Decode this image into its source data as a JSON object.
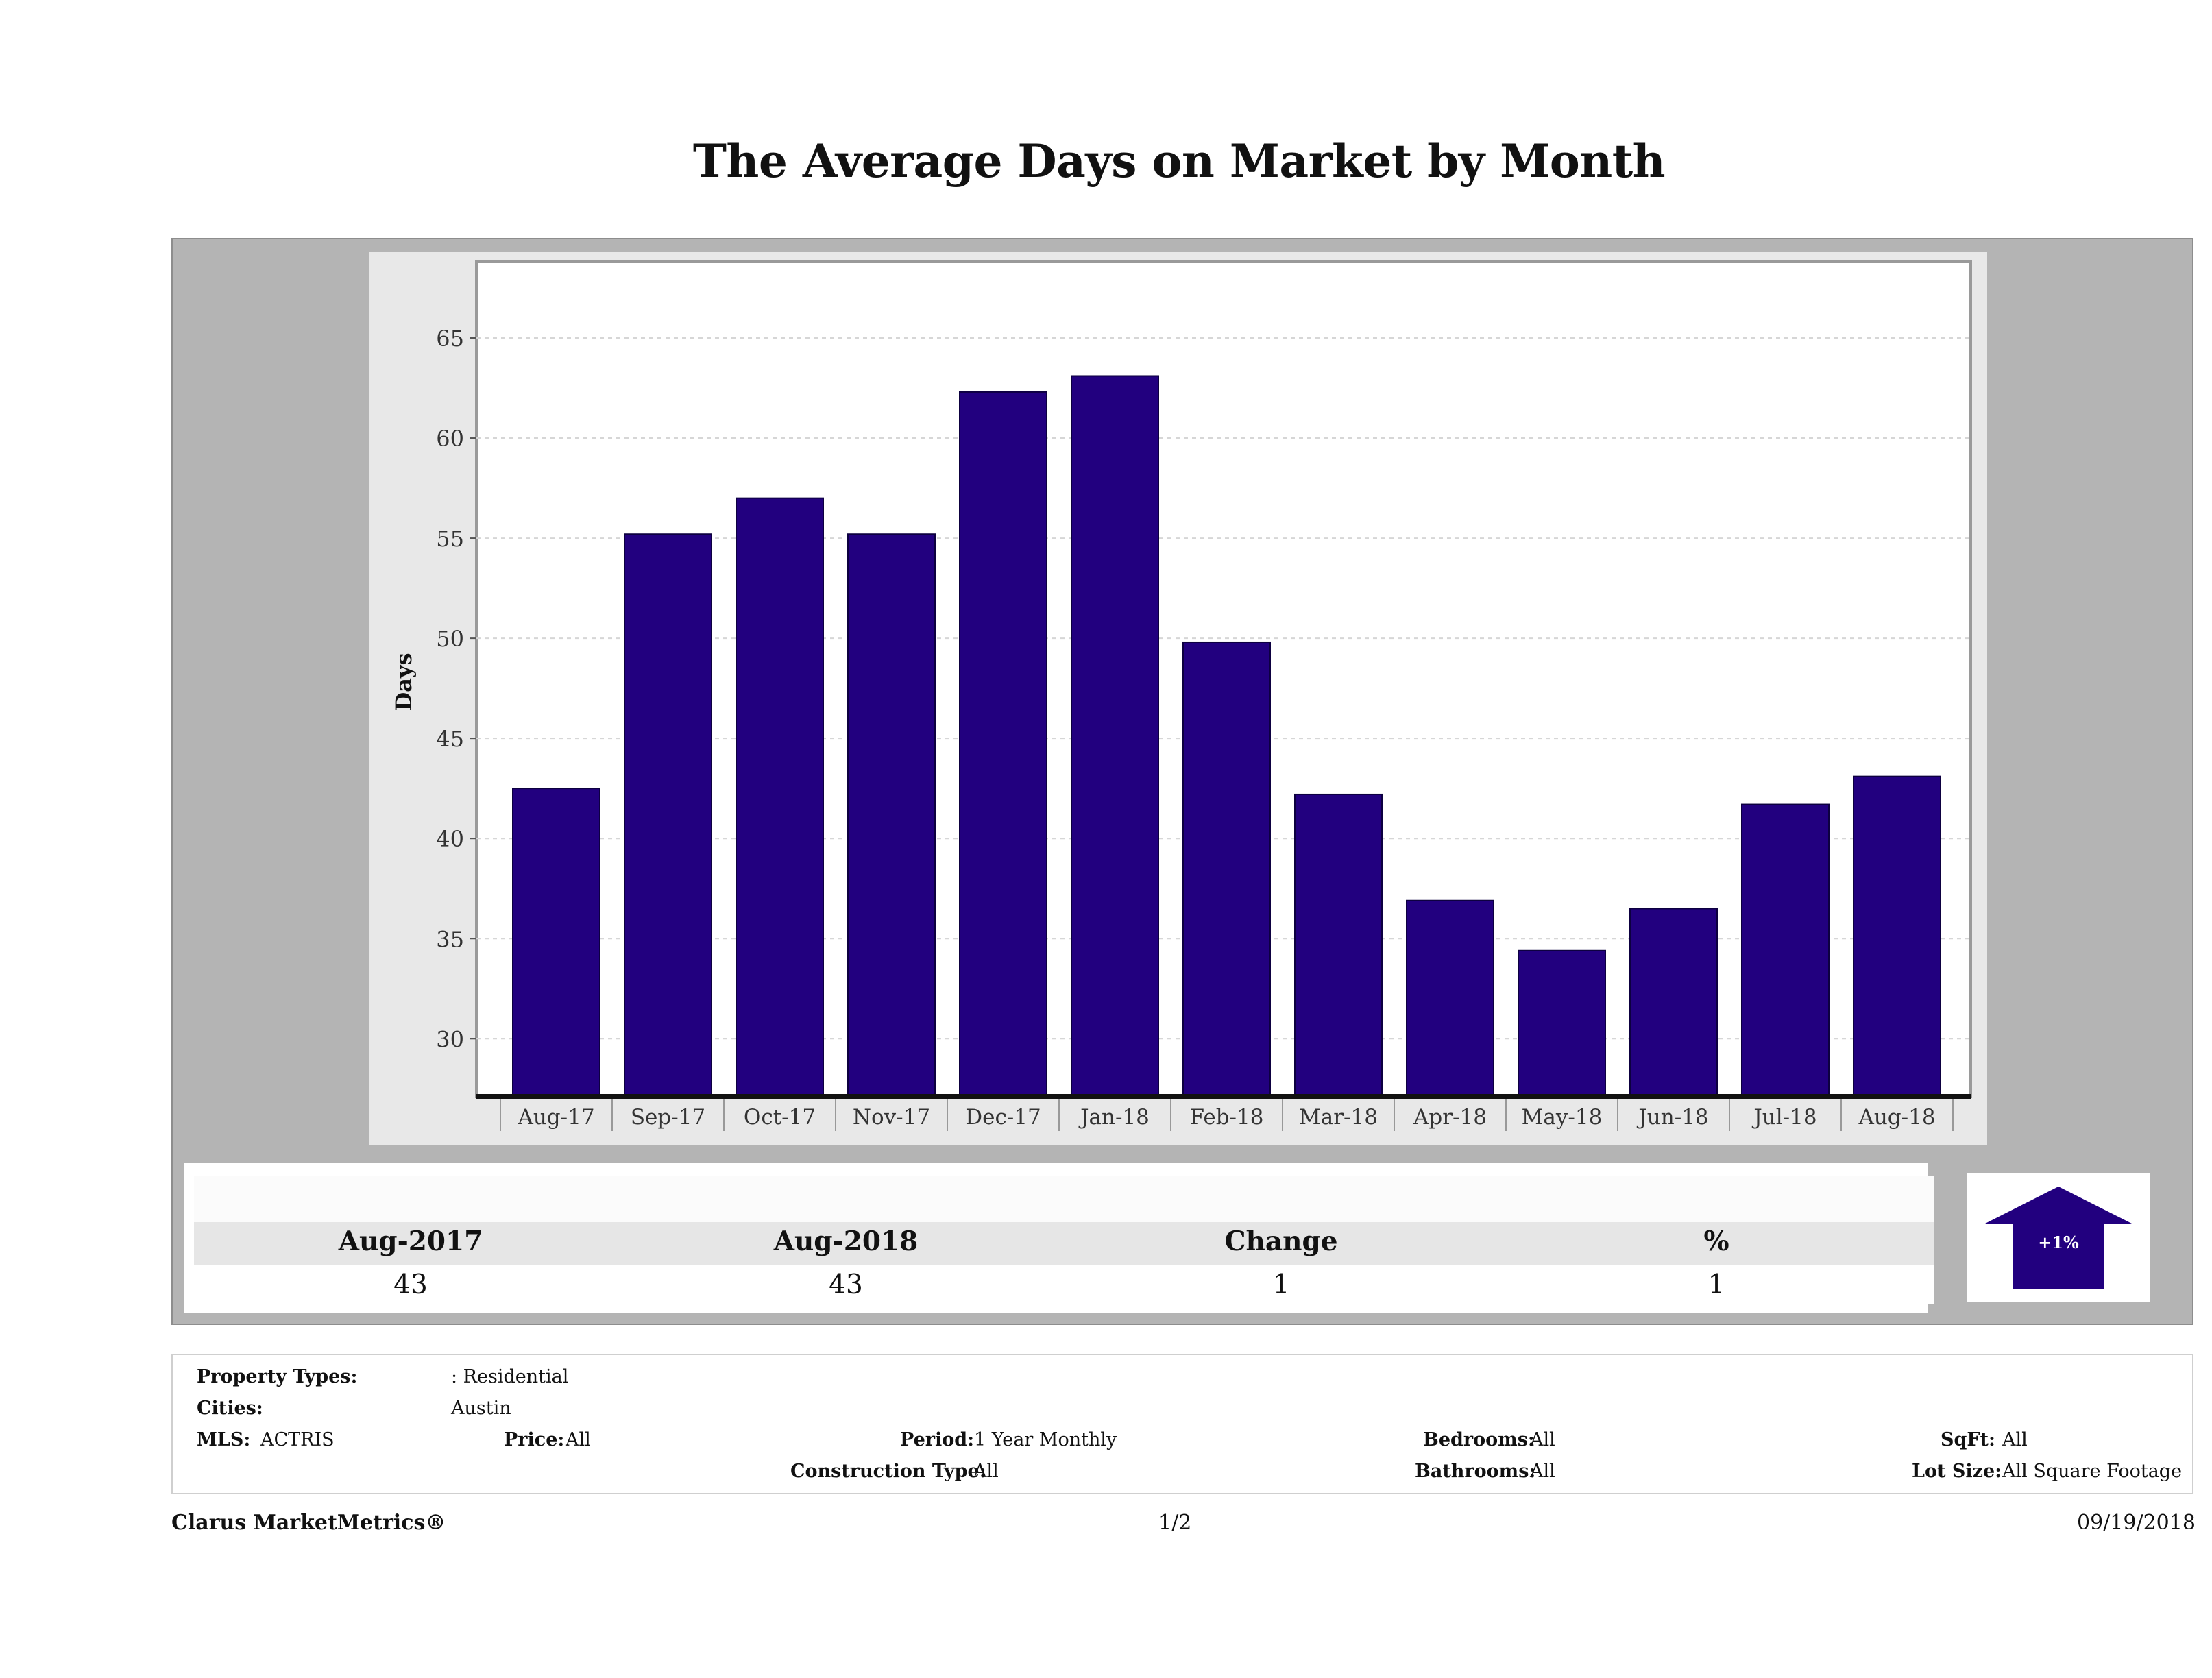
{
  "title": "The Average Days on Market by Month",
  "chart_data": {
    "type": "bar",
    "categories": [
      "Aug-17",
      "Sep-17",
      "Oct-17",
      "Nov-17",
      "Dec-17",
      "Jan-18",
      "Feb-18",
      "Mar-18",
      "Apr-18",
      "May-18",
      "Jun-18",
      "Jul-18",
      "Aug-18"
    ],
    "values": [
      42.5,
      55.2,
      57.0,
      55.2,
      62.3,
      63.1,
      49.8,
      42.2,
      36.9,
      34.4,
      36.5,
      41.7,
      43.1
    ],
    "ylabel": "Days",
    "xlabel": "",
    "yticks": [
      30,
      35,
      40,
      45,
      50,
      55,
      60,
      65
    ],
    "ylim": [
      27.1,
      68.8
    ],
    "grid": true,
    "bar_color": "#22007f"
  },
  "stats": {
    "headers": [
      "Aug-2017",
      "Aug-2018",
      "Change",
      "%"
    ],
    "values": [
      "43",
      "43",
      "1",
      "1"
    ],
    "badge": "+1%",
    "arrow_color": "#22007f"
  },
  "filters": {
    "property_types_label": "Property Types:",
    "property_types_value": ": Residential",
    "cities_label": "Cities:",
    "cities_value": "Austin",
    "mls_label": "MLS:",
    "mls_value": "ACTRIS",
    "price_label": "Price:",
    "price_value": "All",
    "period_label": "Period:",
    "period_value": "1 Year Monthly",
    "construction_label": "Construction Type:",
    "construction_value": "All",
    "bedrooms_label": "Bedrooms:",
    "bedrooms_value": "All",
    "bathrooms_label": "Bathrooms:",
    "bathrooms_value": "All",
    "sqft_label": "SqFt:",
    "sqft_value": "All",
    "lotsize_label": "Lot Size:",
    "lotsize_value": "All Square Footage"
  },
  "footer": {
    "brand": "Clarus MarketMetrics®",
    "page": "1/2",
    "date": "09/19/2018"
  }
}
